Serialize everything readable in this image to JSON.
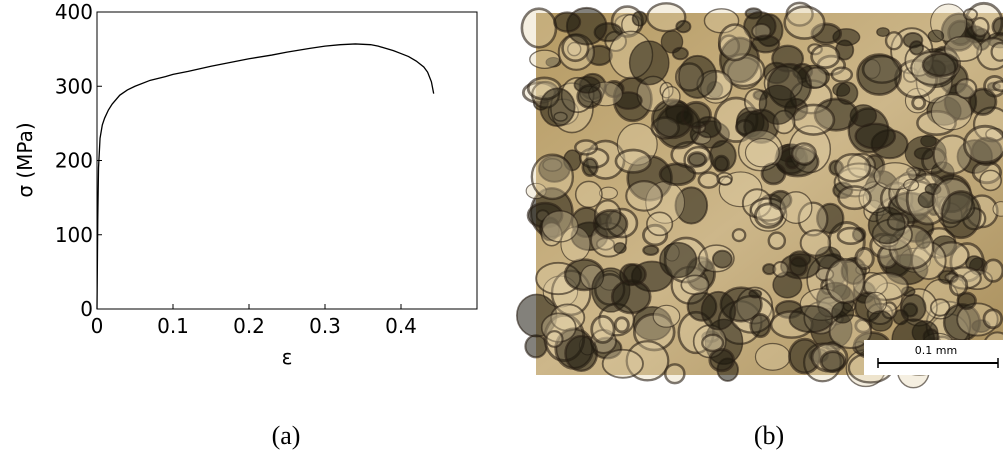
{
  "chart_data": {
    "type": "line",
    "x_label": "ε",
    "y_label": "σ (MPa)",
    "x": [
      0,
      0.001,
      0.002,
      0.004,
      0.007,
      0.01,
      0.015,
      0.02,
      0.03,
      0.04,
      0.05,
      0.07,
      0.09,
      0.1,
      0.12,
      0.15,
      0.18,
      0.2,
      0.23,
      0.25,
      0.28,
      0.3,
      0.32,
      0.34,
      0.36,
      0.37,
      0.38,
      0.39,
      0.4,
      0.41,
      0.42,
      0.43,
      0.435,
      0.44,
      0.443
    ],
    "series": [
      {
        "color": "#000000",
        "values": [
          0,
          120,
          190,
          230,
          248,
          257,
          268,
          276,
          288,
          295,
          300,
          308,
          313,
          316,
          320,
          327,
          333,
          337,
          342,
          346,
          351,
          354,
          356,
          357,
          356,
          354,
          351,
          348,
          344,
          340,
          334,
          326,
          319,
          306,
          290
        ]
      }
    ],
    "xlim": [
      0,
      0.5
    ],
    "xticks": [
      0,
      0.1,
      0.2,
      0.3,
      0.4
    ],
    "ylim": [
      0,
      400
    ],
    "yticks": [
      0,
      100,
      200,
      300,
      400
    ]
  },
  "captions": [
    "(a)",
    "(b)"
  ],
  "scale_bar": "0.1 mm"
}
